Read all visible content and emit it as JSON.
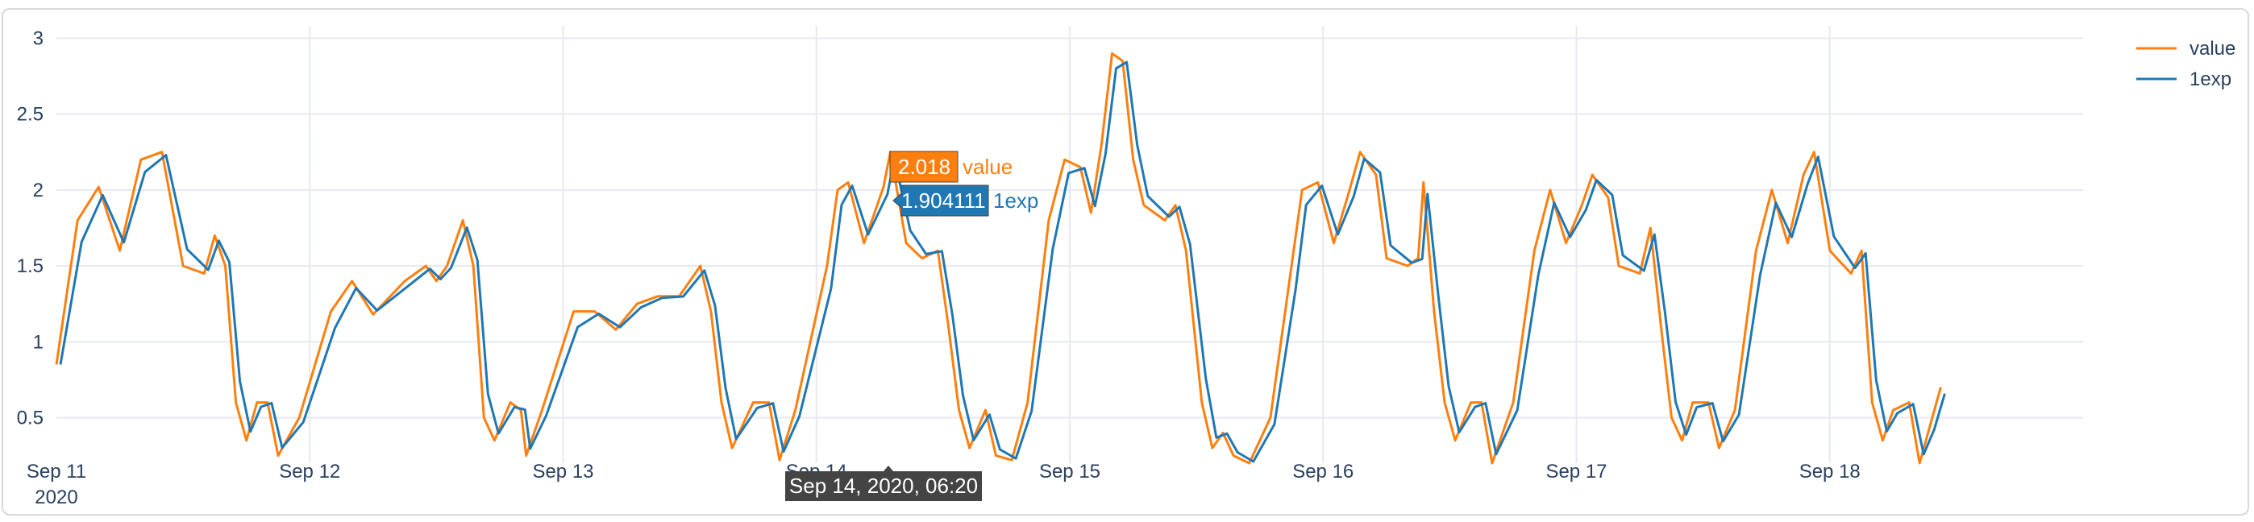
{
  "chart_data": {
    "type": "line",
    "x_ticks": [
      "Sep 11",
      "Sep 12",
      "Sep 13",
      "Sep 14",
      "Sep 15",
      "Sep 16",
      "Sep 17",
      "Sep 18"
    ],
    "x_year_label": "2020",
    "x_range": [
      "2020-09-11 00:00",
      "2020-09-18 23:59"
    ],
    "y_ticks": [
      "0.5",
      "1",
      "1.5",
      "2",
      "2.5",
      "3"
    ],
    "ylim": [
      0.2,
      3.05
    ],
    "grid": true,
    "legend_position": "top-right",
    "series": [
      {
        "name": "value",
        "color": "#ff7f0e",
        "points": [
          [
            "2020-09-11 00:00",
            0.85
          ],
          [
            "2020-09-11 02:00",
            1.8
          ],
          [
            "2020-09-11 04:00",
            2.02
          ],
          [
            "2020-09-11 06:00",
            1.6
          ],
          [
            "2020-09-11 08:00",
            2.2
          ],
          [
            "2020-09-11 10:00",
            2.25
          ],
          [
            "2020-09-11 12:00",
            1.5
          ],
          [
            "2020-09-11 14:00",
            1.45
          ],
          [
            "2020-09-11 15:00",
            1.7
          ],
          [
            "2020-09-11 16:00",
            1.5
          ],
          [
            "2020-09-11 17:00",
            0.6
          ],
          [
            "2020-09-11 18:00",
            0.35
          ],
          [
            "2020-09-11 19:00",
            0.6
          ],
          [
            "2020-09-11 20:00",
            0.6
          ],
          [
            "2020-09-11 21:00",
            0.25
          ],
          [
            "2020-09-11 23:00",
            0.5
          ],
          [
            "2020-09-12 02:00",
            1.2
          ],
          [
            "2020-09-12 04:00",
            1.4
          ],
          [
            "2020-09-12 06:00",
            1.18
          ],
          [
            "2020-09-12 09:00",
            1.4
          ],
          [
            "2020-09-12 11:00",
            1.5
          ],
          [
            "2020-09-12 12:00",
            1.4
          ],
          [
            "2020-09-12 13:00",
            1.5
          ],
          [
            "2020-09-12 14:30",
            1.8
          ],
          [
            "2020-09-12 15:30",
            1.5
          ],
          [
            "2020-09-12 16:30",
            0.5
          ],
          [
            "2020-09-12 17:30",
            0.35
          ],
          [
            "2020-09-12 19:00",
            0.6
          ],
          [
            "2020-09-12 20:00",
            0.55
          ],
          [
            "2020-09-12 20:30",
            0.25
          ],
          [
            "2020-09-12 22:00",
            0.55
          ],
          [
            "2020-09-13 01:00",
            1.2
          ],
          [
            "2020-09-13 03:00",
            1.2
          ],
          [
            "2020-09-13 05:00",
            1.08
          ],
          [
            "2020-09-13 07:00",
            1.25
          ],
          [
            "2020-09-13 09:00",
            1.3
          ],
          [
            "2020-09-13 11:00",
            1.3
          ],
          [
            "2020-09-13 13:00",
            1.5
          ],
          [
            "2020-09-13 14:00",
            1.2
          ],
          [
            "2020-09-13 15:00",
            0.6
          ],
          [
            "2020-09-13 16:00",
            0.3
          ],
          [
            "2020-09-13 18:00",
            0.6
          ],
          [
            "2020-09-13 19:30",
            0.6
          ],
          [
            "2020-09-13 20:30",
            0.22
          ],
          [
            "2020-09-13 22:00",
            0.55
          ],
          [
            "2020-09-14 01:00",
            1.5
          ],
          [
            "2020-09-14 02:00",
            2.0
          ],
          [
            "2020-09-14 03:00",
            2.05
          ],
          [
            "2020-09-14 04:30",
            1.65
          ],
          [
            "2020-09-14 06:20",
            2.018
          ],
          [
            "2020-09-14 07:00",
            2.25
          ],
          [
            "2020-09-14 08:30",
            1.65
          ],
          [
            "2020-09-14 10:00",
            1.55
          ],
          [
            "2020-09-14 11:30",
            1.6
          ],
          [
            "2020-09-14 12:30",
            1.1
          ],
          [
            "2020-09-14 13:30",
            0.55
          ],
          [
            "2020-09-14 14:30",
            0.3
          ],
          [
            "2020-09-14 16:00",
            0.55
          ],
          [
            "2020-09-14 17:00",
            0.25
          ],
          [
            "2020-09-14 18:30",
            0.22
          ],
          [
            "2020-09-14 20:00",
            0.6
          ],
          [
            "2020-09-14 22:00",
            1.8
          ],
          [
            "2020-09-14 23:30",
            2.2
          ],
          [
            "2020-09-15 01:00",
            2.15
          ],
          [
            "2020-09-15 02:00",
            1.85
          ],
          [
            "2020-09-15 03:00",
            2.3
          ],
          [
            "2020-09-15 04:00",
            2.9
          ],
          [
            "2020-09-15 05:00",
            2.85
          ],
          [
            "2020-09-15 06:00",
            2.2
          ],
          [
            "2020-09-15 07:00",
            1.9
          ],
          [
            "2020-09-15 09:00",
            1.8
          ],
          [
            "2020-09-15 10:00",
            1.9
          ],
          [
            "2020-09-15 11:00",
            1.6
          ],
          [
            "2020-09-15 12:30",
            0.6
          ],
          [
            "2020-09-15 13:30",
            0.3
          ],
          [
            "2020-09-15 14:30",
            0.4
          ],
          [
            "2020-09-15 15:30",
            0.25
          ],
          [
            "2020-09-15 17:00",
            0.2
          ],
          [
            "2020-09-15 19:00",
            0.5
          ],
          [
            "2020-09-15 21:00",
            1.5
          ],
          [
            "2020-09-15 22:00",
            2.0
          ],
          [
            "2020-09-15 23:30",
            2.05
          ],
          [
            "2020-09-16 01:00",
            1.65
          ],
          [
            "2020-09-16 02:30",
            2.0
          ],
          [
            "2020-09-16 03:30",
            2.25
          ],
          [
            "2020-09-16 05:00",
            2.1
          ],
          [
            "2020-09-16 06:00",
            1.55
          ],
          [
            "2020-09-16 08:00",
            1.5
          ],
          [
            "2020-09-16 09:00",
            1.55
          ],
          [
            "2020-09-16 09:30",
            2.05
          ],
          [
            "2020-09-16 10:30",
            1.2
          ],
          [
            "2020-09-16 11:30",
            0.6
          ],
          [
            "2020-09-16 12:30",
            0.35
          ],
          [
            "2020-09-16 14:00",
            0.6
          ],
          [
            "2020-09-16 15:00",
            0.6
          ],
          [
            "2020-09-16 16:00",
            0.2
          ],
          [
            "2020-09-16 18:00",
            0.6
          ],
          [
            "2020-09-16 20:00",
            1.6
          ],
          [
            "2020-09-16 21:30",
            2.0
          ],
          [
            "2020-09-16 23:00",
            1.65
          ],
          [
            "2020-09-17 00:30",
            1.9
          ],
          [
            "2020-09-17 01:30",
            2.1
          ],
          [
            "2020-09-17 03:00",
            1.95
          ],
          [
            "2020-09-17 04:00",
            1.5
          ],
          [
            "2020-09-17 06:00",
            1.45
          ],
          [
            "2020-09-17 07:00",
            1.75
          ],
          [
            "2020-09-17 08:00",
            1.1
          ],
          [
            "2020-09-17 09:00",
            0.5
          ],
          [
            "2020-09-17 10:00",
            0.35
          ],
          [
            "2020-09-17 11:00",
            0.6
          ],
          [
            "2020-09-17 12:30",
            0.6
          ],
          [
            "2020-09-17 13:30",
            0.3
          ],
          [
            "2020-09-17 15:00",
            0.55
          ],
          [
            "2020-09-17 17:00",
            1.6
          ],
          [
            "2020-09-17 18:30",
            2.0
          ],
          [
            "2020-09-17 20:00",
            1.65
          ],
          [
            "2020-09-17 21:30",
            2.1
          ],
          [
            "2020-09-17 22:30",
            2.25
          ],
          [
            "2020-09-18 00:00",
            1.6
          ],
          [
            "2020-09-18 02:00",
            1.45
          ],
          [
            "2020-09-18 03:00",
            1.6
          ],
          [
            "2020-09-18 04:00",
            0.6
          ],
          [
            "2020-09-18 05:00",
            0.35
          ],
          [
            "2020-09-18 06:00",
            0.55
          ],
          [
            "2020-09-18 07:30",
            0.6
          ],
          [
            "2020-09-18 08:30",
            0.2
          ],
          [
            "2020-09-18 09:30",
            0.45
          ],
          [
            "2020-09-18 10:30",
            0.7
          ]
        ]
      },
      {
        "name": "1exp",
        "color": "#1f77b4"
      }
    ],
    "hover": {
      "x_label": "Sep 14, 2020, 06:20",
      "values": [
        {
          "series": "value",
          "text": "2.018",
          "y": 2.018
        },
        {
          "series": "1exp",
          "text": "1.904111",
          "y": 1.904111
        }
      ]
    }
  }
}
